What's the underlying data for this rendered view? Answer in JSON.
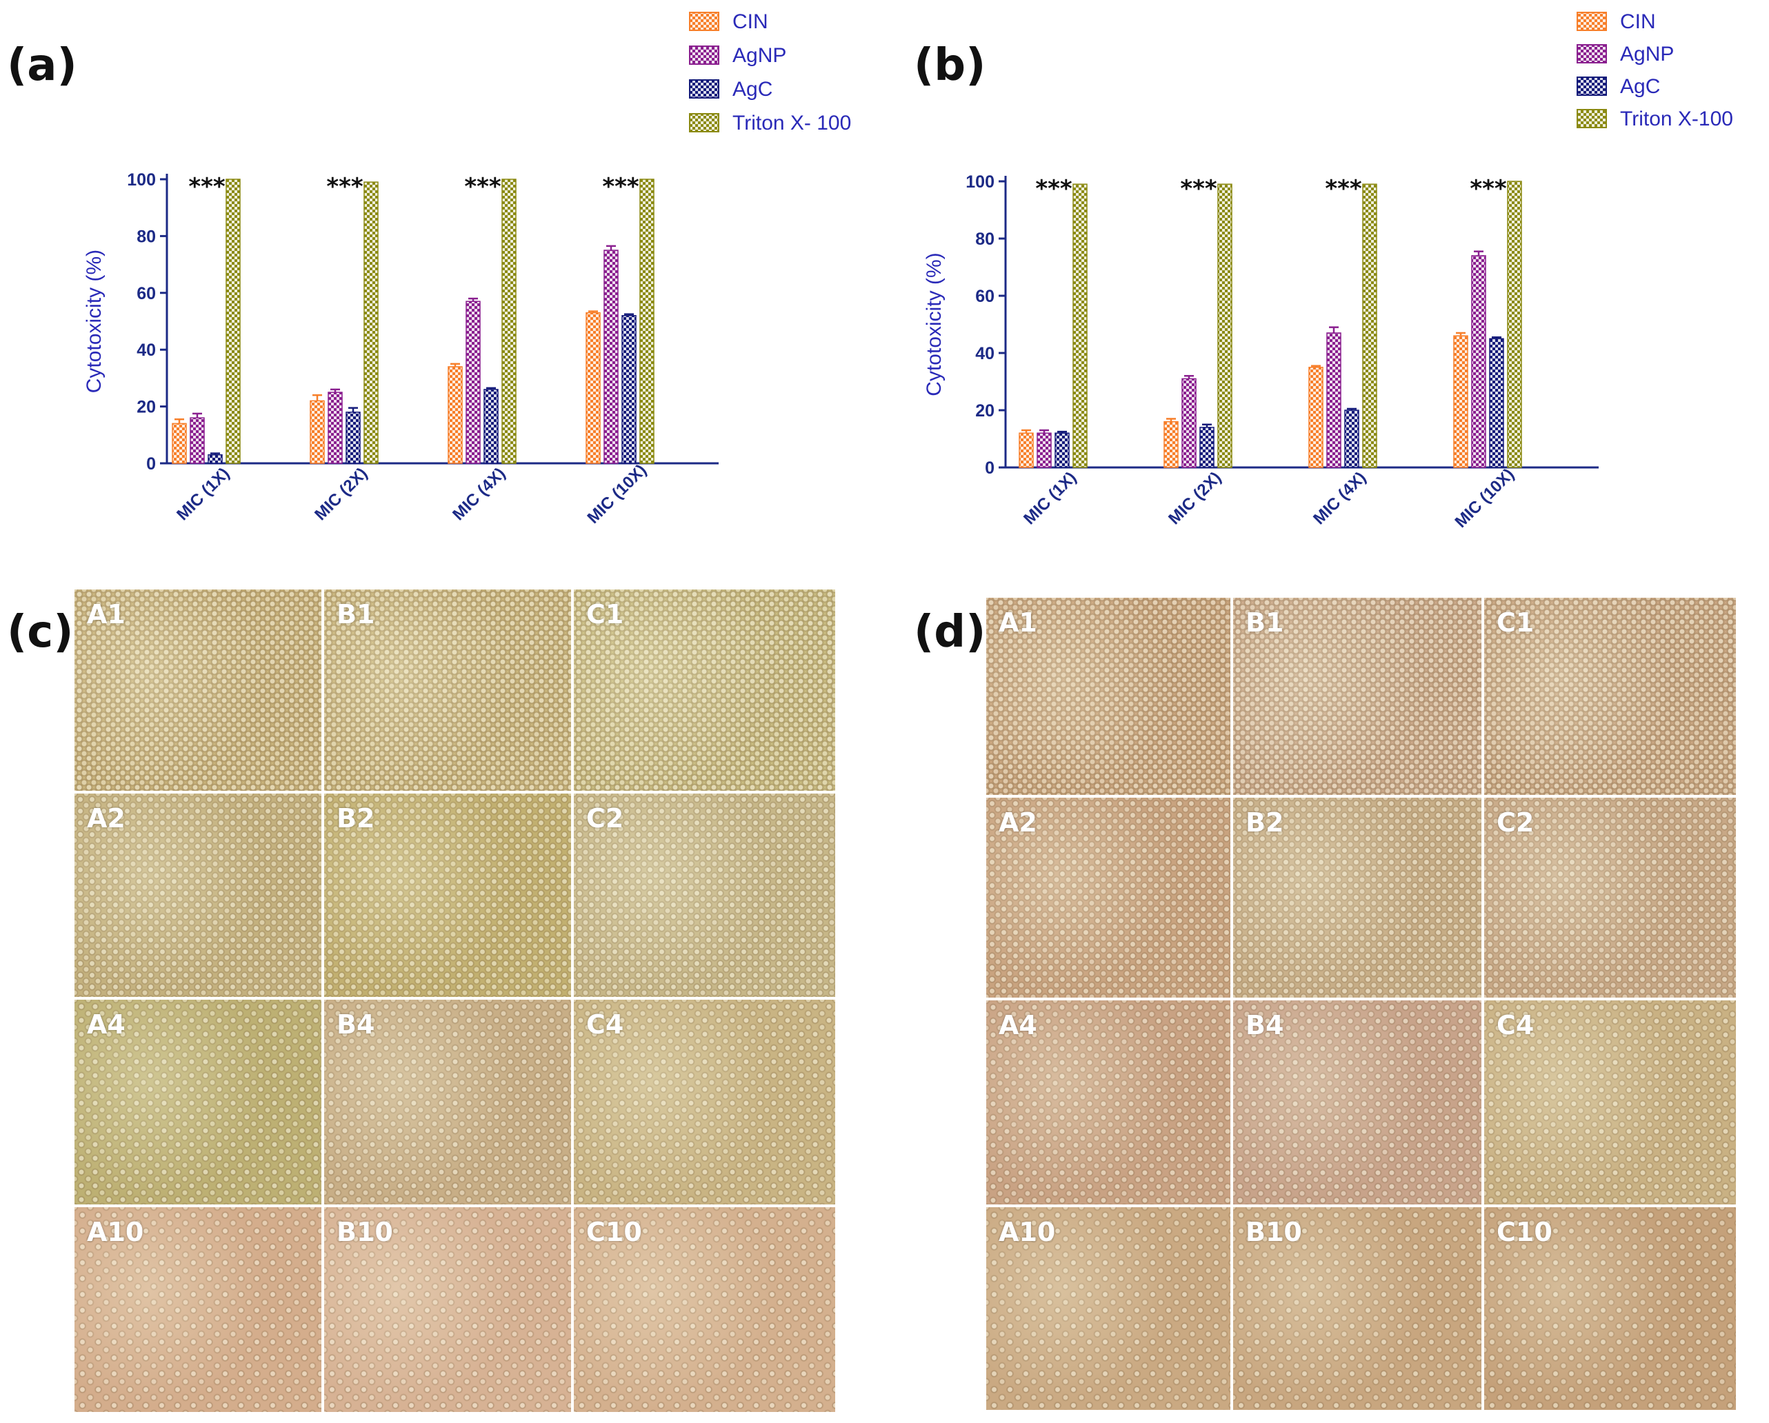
{
  "panels": {
    "a": "(a)",
    "b": "(b)",
    "c": "(c)",
    "d": "(d)"
  },
  "chart_data": [
    {
      "type": "bar",
      "panel": "a",
      "categories": [
        "MIC (1X)",
        "MIC (2X)",
        "MIC (4X)",
        "MIC (10X)"
      ],
      "series": [
        {
          "name": "CIN",
          "color": "#f77f2a",
          "values": [
            14,
            22,
            34,
            53
          ],
          "errors": [
            1.5,
            2,
            1,
            0.5
          ]
        },
        {
          "name": "AgNP",
          "color": "#8a1f8f",
          "values": [
            16,
            25,
            57,
            75
          ],
          "errors": [
            1.5,
            1,
            1,
            1.5
          ]
        },
        {
          "name": "AgC",
          "color": "#141b7a",
          "values": [
            3,
            18,
            26,
            52
          ],
          "errors": [
            0.5,
            1.5,
            0.5,
            0.5
          ]
        },
        {
          "name": "Triton X- 100",
          "color": "#8b8a12",
          "values": [
            100,
            99,
            100,
            100
          ],
          "errors": [
            0,
            0,
            0,
            0
          ]
        }
      ],
      "significance": [
        "***",
        "***",
        "***",
        "***"
      ],
      "ylabel": "Cytotoxicity (%)",
      "ylim": [
        0,
        100
      ],
      "yticks": [
        0,
        20,
        40,
        60,
        80,
        100
      ],
      "legend": "top-right"
    },
    {
      "type": "bar",
      "panel": "b",
      "categories": [
        "MIC (1X)",
        "MIC (2X)",
        "MIC (4X)",
        "MIC (10X)"
      ],
      "series": [
        {
          "name": "CIN",
          "color": "#f77f2a",
          "values": [
            12,
            16,
            35,
            46
          ],
          "errors": [
            1,
            1,
            0.5,
            1
          ]
        },
        {
          "name": "AgNP",
          "color": "#8a1f8f",
          "values": [
            12,
            31,
            47,
            74
          ],
          "errors": [
            1,
            1,
            2,
            1.5
          ]
        },
        {
          "name": "AgC",
          "color": "#141b7a",
          "values": [
            12,
            14,
            20,
            45
          ],
          "errors": [
            0.5,
            1,
            0.5,
            0.5
          ]
        },
        {
          "name": "Triton X-100",
          "color": "#8b8a12",
          "values": [
            99,
            99,
            99,
            100
          ],
          "errors": [
            0,
            0,
            0,
            0
          ]
        }
      ],
      "significance": [
        "***",
        "***",
        "***",
        "***"
      ],
      "ylabel": "Cytotoxicity (%)",
      "ylim": [
        0,
        100
      ],
      "yticks": [
        0,
        20,
        40,
        60,
        80,
        100
      ],
      "legend": "top-right"
    }
  ],
  "micrographs": {
    "c": {
      "rows": [
        [
          "A1",
          "B1",
          "C1"
        ],
        [
          "A2",
          "B2",
          "C2"
        ],
        [
          "A4",
          "B4",
          "C4"
        ],
        [
          "A10",
          "B10",
          "C10"
        ]
      ]
    },
    "d": {
      "rows": [
        [
          "A1",
          "B1",
          "C1"
        ],
        [
          "A2",
          "B2",
          "C2"
        ],
        [
          "A4",
          "B4",
          "C4"
        ],
        [
          "A10",
          "B10",
          "C10"
        ]
      ]
    }
  }
}
